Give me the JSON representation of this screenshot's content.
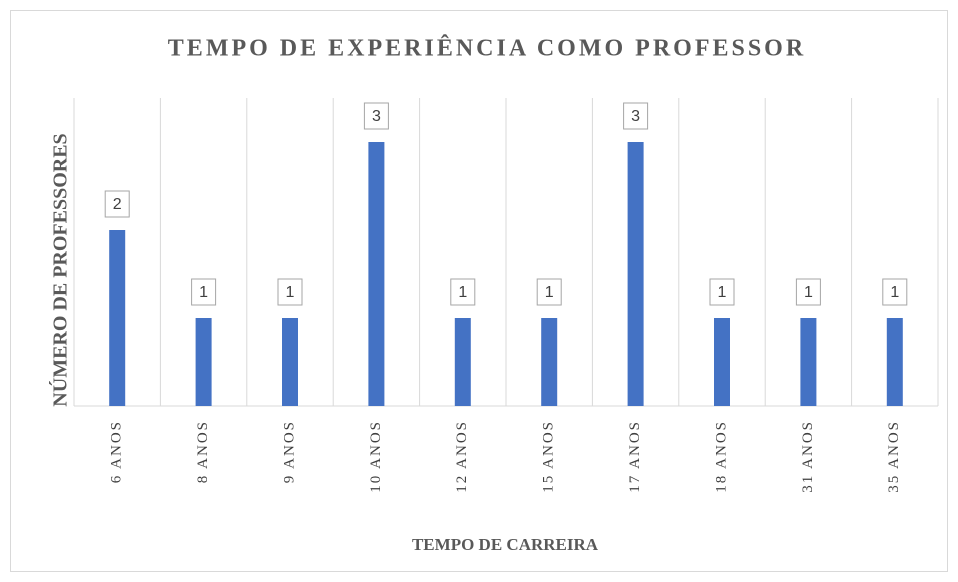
{
  "chart_data": {
    "type": "bar",
    "title": "TEMPO DE EXPERIÊNCIA COMO PROFESSOR",
    "x_label": "TEMPO DE CARREIRA",
    "y_label": "NÚMERO DE PROFESSORES",
    "categories": [
      "6 ANOS",
      "8 ANOS",
      "9 ANOS",
      "10 ANOS",
      "12 ANOS",
      "15 ANOS",
      "17 ANOS",
      "18 ANOS",
      "31 ANOS",
      "35 ANOS"
    ],
    "values": [
      2,
      1,
      1,
      3,
      1,
      1,
      3,
      1,
      1,
      1
    ],
    "color": "#4472c4",
    "ylim": [
      0,
      3.5
    ]
  }
}
